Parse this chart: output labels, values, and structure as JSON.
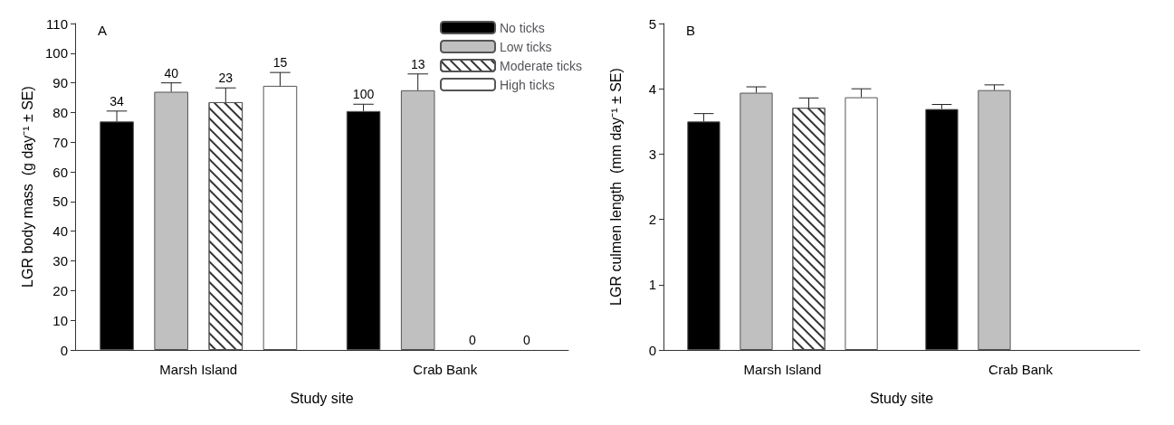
{
  "chart_data": [
    {
      "type": "bar",
      "annotations": [
        "A",
        "34",
        "40",
        "23",
        "15",
        "100",
        "13",
        "0",
        "0"
      ],
      "xlabel": "Study site",
      "ylabel": "LGR body mass  (g day⁻¹ ± SE)",
      "categories": [
        "Marsh Island",
        "Crab Bank"
      ],
      "ylim": [
        0,
        110
      ],
      "yticks": [
        0,
        10,
        20,
        30,
        40,
        50,
        60,
        70,
        80,
        90,
        100,
        110
      ],
      "grid": false,
      "legend": "top right",
      "series": [
        {
          "name": "No ticks",
          "color": "#000000",
          "values": [
            77,
            80.5
          ],
          "errors": [
            3.5,
            2.3
          ]
        },
        {
          "name": "Low ticks",
          "color": "#c0c0c0",
          "values": [
            87,
            87.5
          ],
          "errors": [
            3,
            5.5
          ]
        },
        {
          "name": "Moderate ticks",
          "color": "#ffffff",
          "values": [
            83.5,
            null
          ],
          "errors": [
            4.8,
            null
          ]
        },
        {
          "name": "High ticks",
          "color": "#ffffff",
          "values": [
            89,
            null
          ],
          "errors": [
            4.5,
            null
          ]
        }
      ]
    },
    {
      "type": "bar",
      "annotations": [
        "B"
      ],
      "xlabel": "Study site",
      "ylabel": "LGR culmen length  (mm day⁻¹ ± SE)",
      "categories": [
        "Marsh Island",
        "Crab Bank"
      ],
      "ylim": [
        0,
        5
      ],
      "yticks": [
        0,
        1,
        2,
        3,
        4,
        5
      ],
      "grid": false,
      "series": [
        {
          "color": "#000000",
          "values": [
            3.5,
            3.69
          ],
          "errors": [
            0.12,
            0.07
          ]
        },
        {
          "color": "#c0c0c0",
          "values": [
            3.94,
            3.98
          ],
          "errors": [
            0.09,
            0.08
          ]
        },
        {
          "color": "#ffffff",
          "values": [
            3.71,
            null
          ],
          "errors": [
            0.15,
            null
          ]
        },
        {
          "color": "#ffffff",
          "values": [
            3.87,
            null
          ],
          "errors": [
            0.13,
            null
          ]
        }
      ]
    }
  ]
}
